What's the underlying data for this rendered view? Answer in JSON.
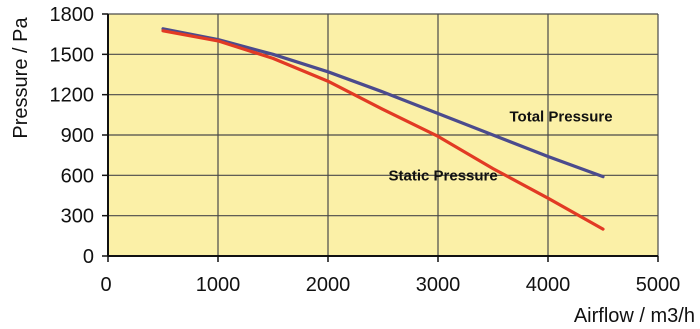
{
  "chart_data": {
    "type": "line",
    "xlabel": "Airflow / m3/h",
    "ylabel": "Pressure / Pa",
    "xlim": [
      0,
      5000
    ],
    "ylim": [
      0,
      1800
    ],
    "x_ticks": [
      0,
      1000,
      2000,
      3000,
      4000,
      5000
    ],
    "y_ticks": [
      0,
      300,
      600,
      900,
      1200,
      1500,
      1800
    ],
    "grid": true,
    "colors": {
      "plot_bg": "#fbf0a7",
      "grid": "#4a4a4a",
      "axis": "#111111"
    },
    "series": [
      {
        "name": "Total Pressure",
        "color": "#4b4b8d",
        "x": [
          500,
          1000,
          1500,
          2000,
          2500,
          3000,
          3500,
          4000,
          4500
        ],
        "y": [
          1690,
          1610,
          1500,
          1370,
          1220,
          1060,
          900,
          740,
          590
        ]
      },
      {
        "name": "Static Pressure",
        "color": "#e23a24",
        "x": [
          500,
          1000,
          1500,
          2000,
          2500,
          3000,
          3500,
          4000,
          4500
        ],
        "y": [
          1675,
          1600,
          1470,
          1300,
          1090,
          890,
          650,
          430,
          200
        ]
      }
    ],
    "annotations": [
      {
        "text": "Total Pressure",
        "x": 3650,
        "y": 1000
      },
      {
        "text": "Static Pressure",
        "x": 2550,
        "y": 560
      }
    ]
  }
}
